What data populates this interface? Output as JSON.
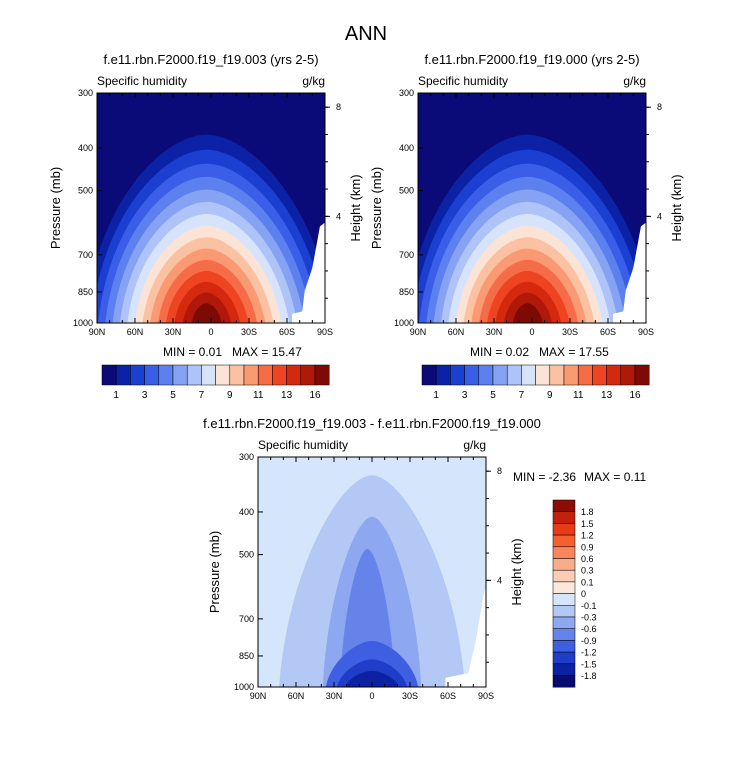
{
  "figure": {
    "title": "ANN"
  },
  "colorbars": {
    "top_labels": [
      "1",
      "3",
      "5",
      "7",
      "9",
      "11",
      "13",
      "16"
    ],
    "top_colors": [
      "#0a0a78",
      "#0c22a6",
      "#1a3fd1",
      "#3a5ee8",
      "#5d80ef",
      "#86a3f3",
      "#aec3f7",
      "#d7e3fb",
      "#fbe3d6",
      "#fbc1a3",
      "#f99a73",
      "#f66c49",
      "#ef4422",
      "#d4290f",
      "#b0180a",
      "#7e0a05"
    ],
    "bottom_labels": [
      "1.8",
      "1.5",
      "1.2",
      "0.9",
      "0.6",
      "0.3",
      "0.1",
      "0",
      "-0.1",
      "-0.3",
      "-0.6",
      "-0.9",
      "-1.2",
      "-1.5",
      "-1.8"
    ],
    "bottom_colors": [
      "#8b0d05",
      "#c2220c",
      "#e63b17",
      "#f5602f",
      "#f8865a",
      "#f9ac88",
      "#fbcdb4",
      "#fbe8dc",
      "#d5e5fb",
      "#b3c8f5",
      "#8da7f0",
      "#6683ea",
      "#3f5fe2",
      "#1f3dc8",
      "#0c22a2",
      "#090c6e"
    ]
  },
  "chart_data": [
    {
      "type": "contour",
      "title": "f.e11.rbn.F2000.f19_f19.003 (yrs 2-5)",
      "left_label": "Specific humidity",
      "right_label": "g/kg",
      "xlabel": "",
      "ylabel": "Pressure (mb)",
      "ylabel_right": "Height (km)",
      "x_ticks": [
        "90N",
        "60N",
        "30N",
        "0",
        "30S",
        "60S",
        "90S"
      ],
      "x_values": [
        90,
        60,
        30,
        0,
        -30,
        -60,
        -90
      ],
      "y_ticks": [
        "300",
        "400",
        "500",
        "700",
        "850",
        "1000"
      ],
      "y_values": [
        300,
        400,
        500,
        700,
        850,
        1000
      ],
      "right_ticks": [
        "8",
        "4"
      ],
      "right_values": [
        8,
        4
      ],
      "ylim": [
        300,
        1000
      ],
      "min_label": "MIN = ",
      "min_value": "0.01",
      "max_label": "MAX = ",
      "max_value": "15.47",
      "max": 15.47,
      "bar_colors": [
        "#0a0a78",
        "#0c22a6",
        "#1a3fd1",
        "#3a5ee8",
        "#5d80ef",
        "#86a3f3",
        "#aec3f7",
        "#d7e3fb",
        "#fbe3d6",
        "#fbc1a3",
        "#f99a73",
        "#f66c49",
        "#ef4422",
        "#d4290f",
        "#b0180a",
        "#7e0a05"
      ]
    },
    {
      "type": "contour",
      "title": "f.e11.rbn.F2000.f19_f19.000 (yrs 2-5)",
      "left_label": "Specific humidity",
      "right_label": "g/kg",
      "xlabel": "",
      "ylabel": "Pressure (mb)",
      "ylabel_right": "Height (km)",
      "x_ticks": [
        "90N",
        "60N",
        "30N",
        "0",
        "30S",
        "60S",
        "90S"
      ],
      "x_values": [
        90,
        60,
        30,
        0,
        -30,
        -60,
        -90
      ],
      "y_ticks": [
        "300",
        "400",
        "500",
        "700",
        "850",
        "1000"
      ],
      "y_values": [
        300,
        400,
        500,
        700,
        850,
        1000
      ],
      "right_ticks": [
        "8",
        "4"
      ],
      "right_values": [
        8,
        4
      ],
      "ylim": [
        300,
        1000
      ],
      "min_label": "MIN = ",
      "min_value": "0.02",
      "max_label": "MAX = ",
      "max_value": "17.55",
      "max": 17.55,
      "bar_colors": [
        "#0a0a78",
        "#0c22a6",
        "#1a3fd1",
        "#3a5ee8",
        "#5d80ef",
        "#86a3f3",
        "#aec3f7",
        "#d7e3fb",
        "#fbe3d6",
        "#fbc1a3",
        "#f99a73",
        "#f66c49",
        "#ef4422",
        "#d4290f",
        "#b0180a",
        "#7e0a05"
      ]
    },
    {
      "type": "contour",
      "title": "f.e11.rbn.F2000.f19_f19.003 - f.e11.rbn.F2000.f19_f19.000",
      "left_label": "Specific humidity",
      "right_label": "g/kg",
      "xlabel": "",
      "ylabel": "Pressure (mb)",
      "ylabel_right": "Height (km)",
      "x_ticks": [
        "90N",
        "60N",
        "30N",
        "0",
        "30S",
        "60S",
        "90S"
      ],
      "x_values": [
        90,
        60,
        30,
        0,
        -30,
        -60,
        -90
      ],
      "y_ticks": [
        "300",
        "400",
        "500",
        "700",
        "850",
        "1000"
      ],
      "y_values": [
        300,
        400,
        500,
        700,
        850,
        1000
      ],
      "right_ticks": [
        "8",
        "4"
      ],
      "right_values": [
        8,
        4
      ],
      "ylim": [
        300,
        1000
      ],
      "min_label": "MIN = ",
      "min_value": "-2.36",
      "max_label": "MAX = ",
      "max_value": "0.11",
      "min": -2.36,
      "max": 0.11
    }
  ]
}
